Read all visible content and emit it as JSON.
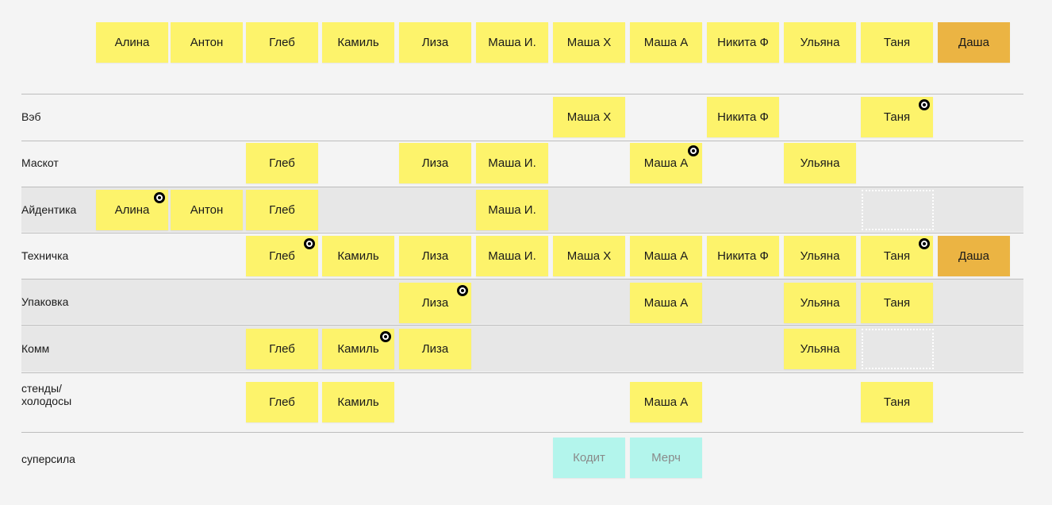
{
  "colors": {
    "note": "#fdf36b",
    "orange": "#ebb443",
    "cyan": "#b3f5ec"
  },
  "header": {
    "names": [
      {
        "text": "Алина"
      },
      {
        "text": "Антон"
      },
      {
        "text": "Глеб"
      },
      {
        "text": "Камиль"
      },
      {
        "text": "Лиза"
      },
      {
        "text": "Маша И."
      },
      {
        "text": "Маша Х"
      },
      {
        "text": "Маша А"
      },
      {
        "text": "Никита Ф"
      },
      {
        "text": "Ульяна"
      },
      {
        "text": "Таня"
      },
      {
        "text": "Даша",
        "color": "orange"
      }
    ]
  },
  "rows": [
    {
      "label": "Вэб",
      "cells": [
        null,
        null,
        null,
        null,
        null,
        null,
        {
          "text": "Маша Х"
        },
        null,
        {
          "text": "Никита Ф"
        },
        null,
        {
          "text": "Таня",
          "dot": true
        },
        null
      ]
    },
    {
      "label": "Маскот",
      "cells": [
        null,
        null,
        {
          "text": "Глеб"
        },
        null,
        {
          "text": "Лиза"
        },
        {
          "text": "Маша И."
        },
        null,
        {
          "text": "Маша А",
          "dot": true
        },
        null,
        {
          "text": "Ульяна"
        },
        null,
        null
      ]
    },
    {
      "label": "Айдентика",
      "shaded": true,
      "cells": [
        {
          "text": "Алина",
          "dot": true
        },
        {
          "text": "Антон"
        },
        {
          "text": "Глеб"
        },
        null,
        null,
        {
          "text": "Маша И."
        },
        null,
        null,
        null,
        null,
        null,
        null
      ]
    },
    {
      "label": "Техничка",
      "cells": [
        null,
        null,
        {
          "text": "Глеб",
          "dot": true
        },
        {
          "text": "Камиль"
        },
        {
          "text": "Лиза"
        },
        {
          "text": "Маша И."
        },
        {
          "text": "Маша Х"
        },
        {
          "text": "Маша А"
        },
        {
          "text": "Никита Ф"
        },
        {
          "text": "Ульяна"
        },
        {
          "text": "Таня",
          "dot": true
        },
        {
          "text": "Даша",
          "color": "orange"
        }
      ]
    },
    {
      "label": "Упаковка",
      "shaded": true,
      "cells": [
        null,
        null,
        null,
        null,
        {
          "text": "Лиза",
          "dot": true
        },
        null,
        null,
        {
          "text": "Маша А"
        },
        null,
        {
          "text": "Ульяна"
        },
        {
          "text": "Таня"
        },
        null
      ]
    },
    {
      "label": "Комм",
      "shaded": true,
      "cells": [
        null,
        null,
        {
          "text": "Глеб"
        },
        {
          "text": "Камиль",
          "dot": true
        },
        {
          "text": "Лиза"
        },
        null,
        null,
        null,
        null,
        {
          "text": "Ульяна"
        },
        null,
        null
      ]
    },
    {
      "label": "стенды/ холодосы",
      "cells": [
        null,
        null,
        {
          "text": "Глеб"
        },
        {
          "text": "Камиль"
        },
        null,
        null,
        null,
        {
          "text": "Маша А"
        },
        null,
        null,
        {
          "text": "Таня"
        },
        null
      ]
    },
    {
      "label": "суперсила",
      "cells": [
        null,
        null,
        null,
        null,
        null,
        null,
        {
          "text": "Кодит",
          "color": "cyan"
        },
        {
          "text": "Мерч",
          "color": "cyan"
        },
        null,
        null,
        null,
        null
      ]
    }
  ]
}
